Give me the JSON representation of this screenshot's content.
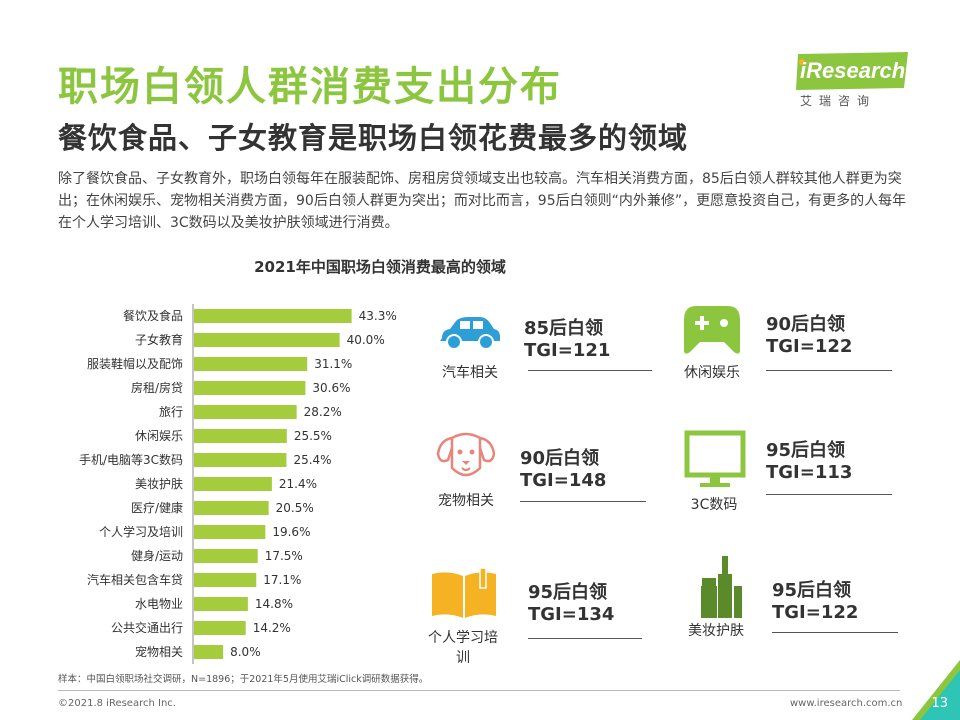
{
  "header": {
    "title": "职场白领人群消费支出分布",
    "subtitle": "餐饮食品、子女教育是职场白领花费最多的领域",
    "description": "除了餐饮食品、子女教育外，职场白领每年在服装配饰、房租房贷领域支出也较高。汽车相关消费方面，85后白领人群较其他人群更为突出；在休闲娱乐、宠物相关消费方面，90后白领人群更为突出；而对比而言，95后白领则“内外兼修”，更愿意投资自己，有更多的人每年在个人学习培训、3C数码以及美妆护肤领域进行消费。"
  },
  "logo": {
    "text": "iResearch",
    "sub": "艾瑞咨询"
  },
  "chart_data": {
    "type": "bar",
    "orientation": "horizontal",
    "title": "2021年中国职场白领消费最高的领域",
    "categories": [
      "餐饮及食品",
      "子女教育",
      "服装鞋帽以及配饰",
      "房租/房贷",
      "旅行",
      "休闲娱乐",
      "手机/电脑等3C数码",
      "美妆护肤",
      "医疗/健康",
      "个人学习及培训",
      "健身/运动",
      "汽车相关包含车贷",
      "水电物业",
      "公共交通出行",
      "宠物相关"
    ],
    "values": [
      43.3,
      40.0,
      31.1,
      30.6,
      28.2,
      25.5,
      25.4,
      21.4,
      20.5,
      19.6,
      17.5,
      17.1,
      14.8,
      14.2,
      8.0
    ],
    "value_labels": [
      "43.3%",
      "40.0%",
      "31.1%",
      "30.6%",
      "28.2%",
      "25.5%",
      "25.4%",
      "21.4%",
      "20.5%",
      "19.6%",
      "17.5%",
      "17.1%",
      "14.8%",
      "14.2%",
      "8.0%"
    ],
    "xlim": [
      0,
      50
    ],
    "unit": "%",
    "bar_color": "#a4cc3c"
  },
  "tgi_items": [
    {
      "icon": "car-icon",
      "label": "汽车相关",
      "gen": "85后白领",
      "tgi": "TGI=121"
    },
    {
      "icon": "gamepad-icon",
      "label": "休闲娱乐",
      "gen": "90后白领",
      "tgi": "TGI=122"
    },
    {
      "icon": "dog-icon",
      "label": "宠物相关",
      "gen": "90后白领",
      "tgi": "TGI=148"
    },
    {
      "icon": "monitor-icon",
      "label": "3C数码",
      "gen": "95后白领",
      "tgi": "TGI=113"
    },
    {
      "icon": "book-icon",
      "label": "个人学习培训",
      "gen": "95后白领",
      "tgi": "TGI=134"
    },
    {
      "icon": "cosmetics-icon",
      "label": "美妆护肤",
      "gen": "95后白领",
      "tgi": "TGI=122"
    }
  ],
  "colors": {
    "accent": "#8cc63f",
    "icon_green": "#8cc63f",
    "icon_blue": "#2d9fd8",
    "icon_pink": "#e8857a",
    "icon_yellow": "#f5b324",
    "icon_darkgreen": "#5a8a2a"
  },
  "footer": {
    "note": "样本：中国白领职场社交调研，N=1896；于2021年5月使用艾瑞iClick调研数据获得。",
    "copyright": "©2021.8 iResearch Inc.",
    "website": "www.iresearch.com.cn",
    "page": "13"
  }
}
